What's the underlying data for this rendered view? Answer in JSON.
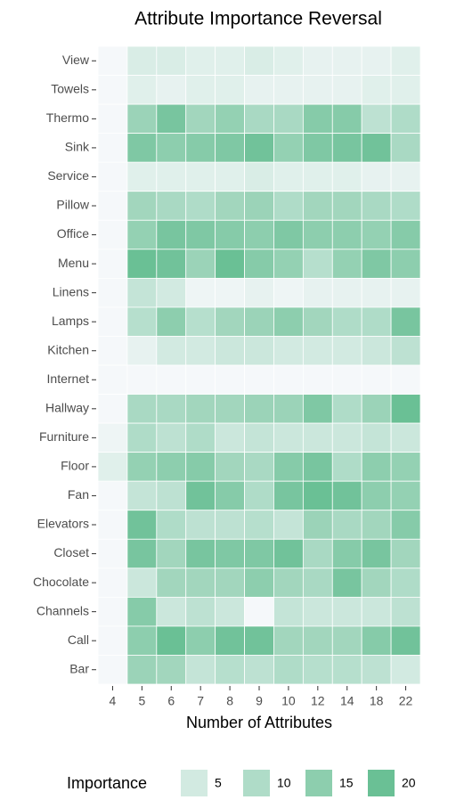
{
  "chart_data": {
    "type": "heatmap",
    "title": "Attribute Importance Reversal",
    "x_label": "Number of Attributes",
    "x": [
      "4",
      "5",
      "6",
      "7",
      "8",
      "9",
      "10",
      "12",
      "14",
      "18",
      "22"
    ],
    "y": [
      "View",
      "Towels",
      "Thermo",
      "Sink",
      "Service",
      "Pillow",
      "Office",
      "Menu",
      "Linens",
      "Lamps",
      "Kitchen",
      "Internet",
      "Hallway",
      "Furniture",
      "Floor",
      "Fan",
      "Elevators",
      "Closet",
      "Chocolate",
      "Channels",
      "Call",
      "Bar"
    ],
    "values": [
      [
        0,
        4,
        4,
        3,
        3,
        4,
        3,
        2,
        2,
        2,
        3
      ],
      [
        0,
        3,
        2,
        3,
        3,
        2,
        2,
        2,
        2,
        3,
        3
      ],
      [
        0,
        13,
        18,
        12,
        14,
        11,
        11,
        16,
        16,
        8,
        10
      ],
      [
        0,
        17,
        15,
        16,
        17,
        19,
        14,
        17,
        18,
        19,
        11
      ],
      [
        0,
        3,
        3,
        3,
        3,
        4,
        3,
        3,
        3,
        2,
        2
      ],
      [
        0,
        12,
        11,
        10,
        12,
        13,
        10,
        12,
        12,
        11,
        10
      ],
      [
        0,
        14,
        18,
        17,
        16,
        15,
        17,
        15,
        15,
        14,
        16
      ],
      [
        0,
        20,
        19,
        13,
        20,
        16,
        14,
        9,
        14,
        17,
        15
      ],
      [
        0,
        7,
        5,
        1,
        1,
        2,
        1,
        2,
        2,
        2,
        2
      ],
      [
        0,
        9,
        15,
        9,
        12,
        13,
        15,
        12,
        10,
        10,
        18
      ],
      [
        0,
        2,
        5,
        5,
        6,
        6,
        5,
        5,
        5,
        6,
        8
      ],
      [
        0,
        0,
        0,
        0,
        0,
        0,
        0,
        0,
        0,
        0,
        0
      ],
      [
        0,
        11,
        11,
        12,
        12,
        13,
        13,
        17,
        10,
        13,
        20
      ],
      [
        1,
        10,
        8,
        10,
        6,
        7,
        6,
        6,
        6,
        7,
        6
      ],
      [
        3,
        14,
        15,
        16,
        12,
        11,
        16,
        18,
        10,
        15,
        14
      ],
      [
        0,
        7,
        8,
        19,
        16,
        10,
        18,
        20,
        19,
        15,
        14
      ],
      [
        0,
        19,
        10,
        8,
        8,
        9,
        7,
        13,
        11,
        12,
        16
      ],
      [
        0,
        18,
        12,
        18,
        17,
        17,
        19,
        11,
        16,
        18,
        12
      ],
      [
        0,
        6,
        12,
        12,
        12,
        15,
        12,
        11,
        18,
        12,
        10
      ],
      [
        0,
        16,
        6,
        8,
        6,
        0,
        7,
        6,
        6,
        6,
        8
      ],
      [
        0,
        15,
        20,
        15,
        19,
        19,
        12,
        12,
        12,
        16,
        19
      ],
      [
        0,
        13,
        12,
        7,
        9,
        8,
        10,
        9,
        9,
        8,
        5
      ]
    ],
    "legend_title": "Importance",
    "legend_ticks": [
      5,
      10,
      15,
      20
    ],
    "zlim": [
      0,
      22
    ],
    "color_low": "#f5f8fa",
    "color_high": "#5cba8b"
  }
}
